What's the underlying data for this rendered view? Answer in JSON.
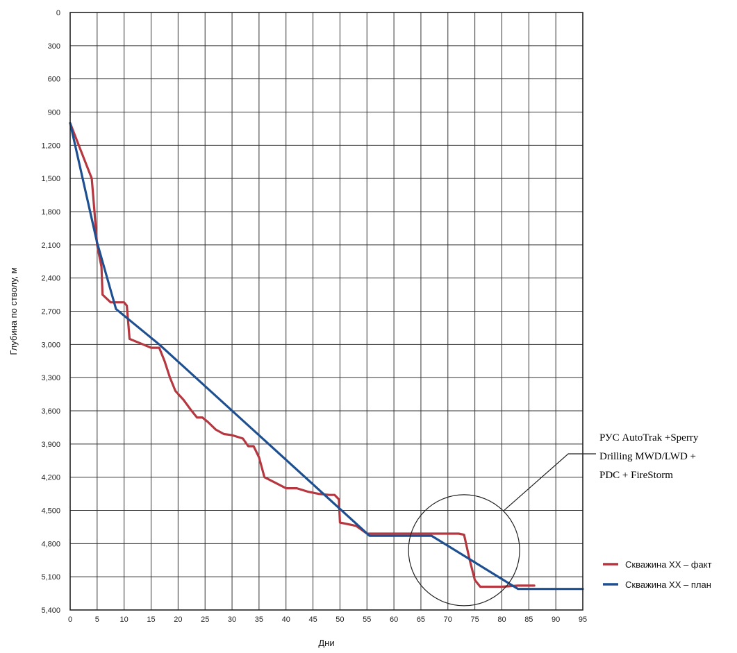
{
  "chart_data": {
    "type": "line",
    "xlabel": "Дни",
    "ylabel": "Глубина по стволу, м",
    "xlim": [
      0,
      95
    ],
    "ylim": [
      0,
      5400
    ],
    "y_inverted": true,
    "grid": true,
    "legend_position": "right",
    "x_ticks": [
      "0",
      "5",
      "10",
      "15",
      "20",
      "25",
      "30",
      "35",
      "40",
      "45",
      "50",
      "55",
      "60",
      "65",
      "70",
      "75",
      "80",
      "85",
      "90",
      "95"
    ],
    "y_ticks": [
      "0",
      "300",
      "600",
      "900",
      "1,200",
      "1,500",
      "1,800",
      "2,100",
      "2,400",
      "2,700",
      "3,000",
      "3,300",
      "3,600",
      "3,900",
      "4,200",
      "4,500",
      "4,800",
      "5,100",
      "5,400"
    ],
    "series": [
      {
        "name": "Скважина ХХ – факт",
        "color": "#b5373f",
        "points": [
          [
            0,
            1000
          ],
          [
            2,
            1250
          ],
          [
            4,
            1500
          ],
          [
            4.5,
            1800
          ],
          [
            5,
            2100
          ],
          [
            5.8,
            2300
          ],
          [
            6,
            2550
          ],
          [
            7.5,
            2620
          ],
          [
            10,
            2620
          ],
          [
            10.5,
            2650
          ],
          [
            11,
            2950
          ],
          [
            13,
            2990
          ],
          [
            15,
            3030
          ],
          [
            16.5,
            3030
          ],
          [
            17.5,
            3150
          ],
          [
            18.5,
            3300
          ],
          [
            19.5,
            3420
          ],
          [
            21,
            3500
          ],
          [
            22.5,
            3600
          ],
          [
            23.5,
            3660
          ],
          [
            24.5,
            3660
          ],
          [
            25.5,
            3700
          ],
          [
            27,
            3770
          ],
          [
            28.5,
            3810
          ],
          [
            30,
            3820
          ],
          [
            32,
            3850
          ],
          [
            33,
            3920
          ],
          [
            34,
            3920
          ],
          [
            35,
            4020
          ],
          [
            36,
            4200
          ],
          [
            38,
            4250
          ],
          [
            40,
            4300
          ],
          [
            42,
            4300
          ],
          [
            44,
            4330
          ],
          [
            46,
            4350
          ],
          [
            48,
            4360
          ],
          [
            49,
            4360
          ],
          [
            49.8,
            4400
          ],
          [
            50,
            4610
          ],
          [
            53,
            4640
          ],
          [
            55,
            4710
          ],
          [
            58,
            4710
          ],
          [
            65,
            4710
          ],
          [
            72,
            4710
          ],
          [
            73,
            4720
          ],
          [
            74,
            4940
          ],
          [
            75,
            5130
          ],
          [
            76,
            5190
          ],
          [
            80,
            5190
          ],
          [
            83,
            5180
          ],
          [
            86,
            5180
          ]
        ]
      },
      {
        "name": "Скважина ХХ – план",
        "color": "#1d4f91",
        "points": [
          [
            0,
            1000
          ],
          [
            5,
            2080
          ],
          [
            8.5,
            2680
          ],
          [
            16.5,
            3000
          ],
          [
            55.5,
            4730
          ],
          [
            67,
            4730
          ],
          [
            83,
            5210
          ],
          [
            95,
            5210
          ]
        ]
      }
    ],
    "annotation": {
      "lines": [
        "РУС AutoTrak +Sperry",
        "Drilling MWD/LWD  +",
        "PDC + FireStorm"
      ],
      "circle_center": [
        73,
        4860
      ]
    }
  }
}
